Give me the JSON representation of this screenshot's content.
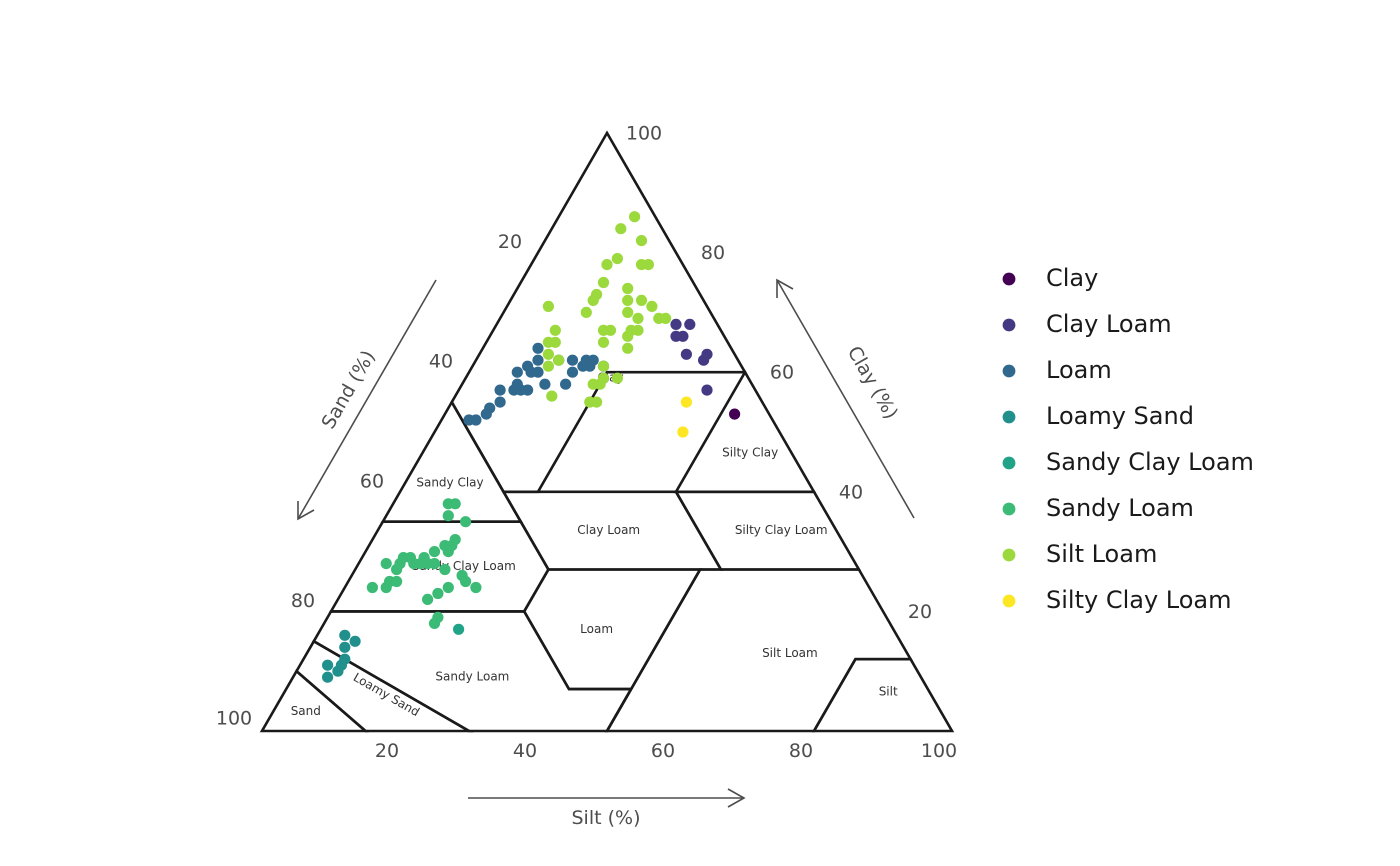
{
  "chart_data": {
    "type": "scatter",
    "subtype": "ternary-soil-texture",
    "axes": {
      "sand": {
        "label": "Sand (%)",
        "ticks": [
          20,
          40,
          60,
          80,
          100
        ],
        "range": [
          0,
          100
        ]
      },
      "silt": {
        "label": "Silt (%)",
        "ticks": [
          20,
          40,
          60,
          80,
          100
        ],
        "range": [
          0,
          100
        ]
      },
      "clay": {
        "label": "Clay (%)",
        "ticks": [
          20,
          40,
          60,
          80,
          100
        ],
        "range": [
          0,
          100
        ]
      }
    },
    "regions": [
      {
        "name": "Clay",
        "polygon": [
          [
            0,
            100
          ],
          [
            45,
            55
          ],
          [
            45,
            40
          ],
          [
            40,
            40
          ],
          [
            20,
            60
          ],
          [
            0,
            60
          ]
        ]
      },
      {
        "name": "Silty Clay",
        "polygon": [
          [
            0,
            60
          ],
          [
            0,
            40
          ],
          [
            20,
            40
          ]
        ]
      },
      {
        "name": "Sandy Clay",
        "polygon": [
          [
            45,
            55
          ],
          [
            65,
            35
          ],
          [
            45,
            35
          ]
        ]
      },
      {
        "name": "Silty Clay Loam",
        "polygon": [
          [
            0,
            40
          ],
          [
            0,
            27
          ],
          [
            20,
            27
          ],
          [
            20,
            40
          ]
        ]
      },
      {
        "name": "Clay Loam",
        "polygon": [
          [
            20,
            40
          ],
          [
            20,
            27
          ],
          [
            45,
            27
          ],
          [
            45,
            40
          ]
        ]
      },
      {
        "name": "Sandy Clay Loam",
        "polygon": [
          [
            45,
            35
          ],
          [
            65,
            35
          ],
          [
            80,
            20
          ],
          [
            52,
            20
          ],
          [
            45,
            27
          ]
        ]
      },
      {
        "name": "Loam",
        "polygon": [
          [
            45,
            27
          ],
          [
            23,
            27
          ],
          [
            50,
            0
          ],
          [
            43,
            7
          ],
          [
            52,
            7
          ],
          [
            52,
            20
          ]
        ]
      },
      {
        "name": "Silt Loam",
        "polygon": [
          [
            23,
            27
          ],
          [
            0,
            27
          ],
          [
            0,
            12
          ],
          [
            8,
            12
          ],
          [
            20,
            0
          ],
          [
            50,
            0
          ]
        ]
      },
      {
        "name": "Silt",
        "polygon": [
          [
            0,
            12
          ],
          [
            0,
            0
          ],
          [
            20,
            0
          ],
          [
            8,
            12
          ]
        ]
      },
      {
        "name": "Sandy Loam",
        "polygon": [
          [
            52,
            20
          ],
          [
            80,
            20
          ],
          [
            85,
            15
          ],
          [
            70,
            0
          ],
          [
            50,
            0
          ],
          [
            43,
            7
          ],
          [
            52,
            7
          ]
        ]
      },
      {
        "name": "Loamy Sand",
        "polygon": [
          [
            85,
            15
          ],
          [
            90,
            10
          ],
          [
            85,
            0
          ],
          [
            70,
            0
          ]
        ]
      },
      {
        "name": "Sand",
        "polygon": [
          [
            90,
            10
          ],
          [
            100,
            0
          ],
          [
            85,
            0
          ]
        ]
      }
    ],
    "region_labels": [
      {
        "name": "Clay",
        "sand": 20,
        "clay": 59
      },
      {
        "name": "Silty Clay",
        "sand": 6,
        "clay": 46.5
      },
      {
        "name": "Sandy Clay",
        "sand": 52,
        "clay": 41.5
      },
      {
        "name": "Silty Clay Loam",
        "sand": 8,
        "clay": 33.5
      },
      {
        "name": "Clay Loam",
        "sand": 33,
        "clay": 33.5
      },
      {
        "name": "Sandy Clay Loam",
        "sand": 57,
        "clay": 27.5
      },
      {
        "name": "Loam",
        "sand": 43,
        "clay": 17
      },
      {
        "name": "Silt Loam",
        "sand": 17,
        "clay": 13
      },
      {
        "name": "Silt",
        "sand": 6,
        "clay": 6.5
      },
      {
        "name": "Sandy Loam",
        "sand": 65,
        "clay": 9
      },
      {
        "name": "Loamy Sand",
        "sand": 79,
        "clay": 6
      },
      {
        "name": "Sand",
        "sand": 92,
        "clay": 3.3
      }
    ],
    "legend": {
      "position": "right"
    },
    "series": [
      {
        "name": "Clay",
        "color": "#440154",
        "points": [
          [
            5,
            42,
            53
          ]
        ]
      },
      {
        "name": "Clay Loam",
        "color": "#443A83",
        "points": [
          [
            7,
            36,
            57
          ],
          [
            5,
            33,
            62
          ],
          [
            4,
            33,
            63
          ],
          [
            4,
            28,
            68
          ],
          [
            6,
            28,
            66
          ],
          [
            7,
            30,
            63
          ],
          [
            6,
            26,
            68
          ],
          [
            7,
            27,
            66
          ]
        ]
      },
      {
        "name": "Loam",
        "color": "#31688E",
        "points": [
          [
            21,
            20,
            59
          ],
          [
            20,
            19,
            61
          ],
          [
            21,
            17,
            62
          ],
          [
            22,
            16,
            62
          ],
          [
            22,
            17,
            61
          ],
          [
            23,
            16,
            61
          ],
          [
            25,
            15,
            60
          ],
          [
            24,
            14,
            62
          ],
          [
            27,
            15,
            58
          ],
          [
            26,
            12,
            62
          ],
          [
            30,
            12,
            58
          ],
          [
            28,
            8,
            64
          ],
          [
            29,
            9,
            62
          ],
          [
            30,
            10,
            60
          ],
          [
            31,
            8,
            61
          ],
          [
            31,
            9,
            60
          ],
          [
            33,
            10,
            57
          ],
          [
            33,
            7,
            60
          ],
          [
            34,
            8,
            58
          ],
          [
            34,
            9,
            57
          ],
          [
            35,
            8,
            57
          ],
          [
            38,
            7,
            55
          ],
          [
            37,
            6,
            57
          ],
          [
            41,
            6,
            53
          ],
          [
            40,
            6,
            54
          ],
          [
            43,
            5,
            52
          ],
          [
            44,
            4,
            52
          ]
        ]
      },
      {
        "name": "Loamy Sand",
        "color": "#21908C",
        "points": [
          [
            80,
            4,
            16
          ],
          [
            79,
            6,
            15
          ],
          [
            81,
            5,
            14
          ],
          [
            82,
            6,
            12
          ],
          [
            83,
            6,
            11
          ],
          [
            84,
            6,
            10
          ],
          [
            85,
            4,
            11
          ],
          [
            86,
            5,
            9
          ]
        ]
      },
      {
        "name": "Sandy Clay Loam",
        "color": "#20A386",
        "points": [
          [
            63,
            20,
            17
          ]
        ]
      },
      {
        "name": "Sandy Loam",
        "color": "#3BBB75",
        "points": [
          [
            72,
            4,
            24
          ],
          [
            70,
            6,
            24
          ],
          [
            69,
            6,
            25
          ],
          [
            68,
            7,
            25
          ],
          [
            67,
            6,
            27
          ],
          [
            68,
            4,
            28
          ],
          [
            66,
            6,
            28
          ],
          [
            65,
            6,
            29
          ],
          [
            64,
            7,
            29
          ],
          [
            64,
            8,
            28
          ],
          [
            63,
            9,
            28
          ],
          [
            62,
            10,
            28
          ],
          [
            62,
            9,
            29
          ],
          [
            61,
            11,
            28
          ],
          [
            60,
            10,
            30
          ],
          [
            58,
            12,
            30
          ],
          [
            58,
            11,
            31
          ],
          [
            56,
            12,
            32
          ],
          [
            55,
            9,
            36
          ],
          [
            54,
            8,
            38
          ],
          [
            53,
            9,
            38
          ],
          [
            65,
            13,
            22
          ],
          [
            66,
            16,
            18
          ],
          [
            65,
            16,
            19
          ],
          [
            63,
            14,
            23
          ],
          [
            61,
            15,
            24
          ],
          [
            60,
            13,
            27
          ],
          [
            58,
            16,
            26
          ],
          [
            57,
            12,
            31
          ],
          [
            58,
            17,
            25
          ],
          [
            57,
            19,
            24
          ],
          [
            53,
            12,
            35
          ]
        ]
      },
      {
        "name": "Silt Loam",
        "color": "#9BD93C",
        "points": [
          [
            25,
            20,
            55
          ],
          [
            24,
            21,
            55
          ],
          [
            23,
            19,
            58
          ],
          [
            22,
            20,
            58
          ],
          [
            21,
            20,
            59
          ],
          [
            20,
            19,
            61
          ],
          [
            19,
            22,
            59
          ],
          [
            18,
            17,
            65
          ],
          [
            17,
            16,
            67
          ],
          [
            16,
            17,
            67
          ],
          [
            15,
            21,
            64
          ],
          [
            14,
            20,
            66
          ],
          [
            13,
            20,
            67
          ],
          [
            12,
            18,
            70
          ],
          [
            11,
            17,
            72
          ],
          [
            10,
            16,
            74
          ],
          [
            11,
            20,
            69
          ],
          [
            12,
            21,
            67
          ],
          [
            9,
            19,
            72
          ],
          [
            8,
            21,
            71
          ],
          [
            8,
            23,
            69
          ],
          [
            7,
            24,
            69
          ],
          [
            6,
            16,
            78
          ],
          [
            5,
            17,
            78
          ],
          [
            4,
            14,
            82
          ],
          [
            3,
            11,
            86
          ],
          [
            27,
            10,
            63
          ],
          [
            26,
            9,
            65
          ],
          [
            25,
            10,
            65
          ],
          [
            24,
            9,
            67
          ],
          [
            28,
            11,
            61
          ],
          [
            30,
            14,
            56
          ],
          [
            26,
            12,
            62
          ],
          [
            18,
            12,
            70
          ],
          [
            16,
            12,
            72
          ],
          [
            15,
            12,
            73
          ],
          [
            13,
            12,
            75
          ],
          [
            11,
            11,
            78
          ],
          [
            9,
            12,
            79
          ],
          [
            6,
            10,
            84
          ],
          [
            23,
            6,
            71
          ]
        ]
      },
      {
        "name": "Silty Clay Loam",
        "color": "#FDE725",
        "points": [
          [
            14,
            36,
            50
          ],
          [
            11,
            34,
            55
          ]
        ]
      }
    ]
  }
}
